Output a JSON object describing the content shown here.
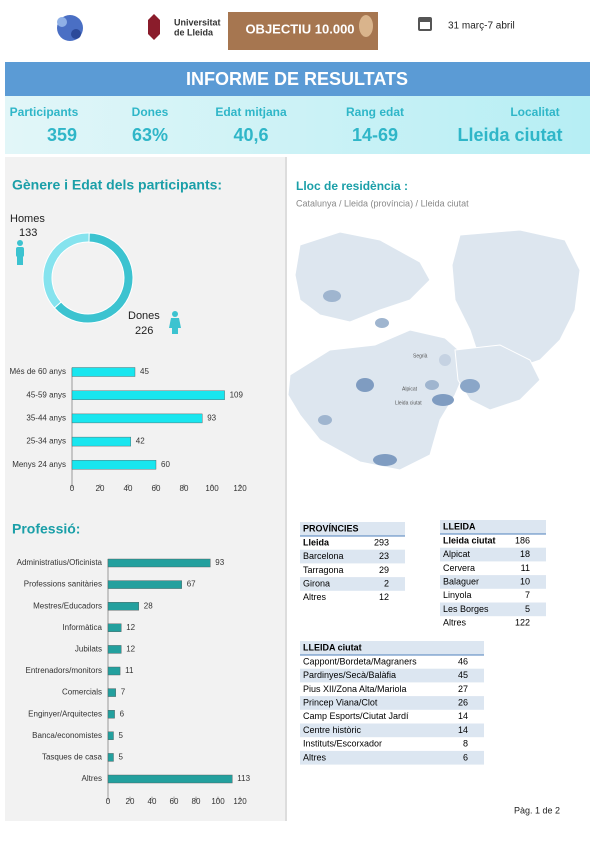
{
  "header": {
    "university": [
      "Universitat",
      "de Lleida"
    ],
    "campaign": "OBJECTIU 10.000",
    "dates": "31 març-7 abril"
  },
  "banner": "INFORME DE RESULTATS",
  "stats": [
    {
      "label": "Participants",
      "value": "359"
    },
    {
      "label": "Dones",
      "value": "63%"
    },
    {
      "label": "Edat mitjana",
      "value": "40,6"
    },
    {
      "label": "Rang edat",
      "value": "14-69"
    },
    {
      "label": "Localitat",
      "value": "Lleida ciutat"
    }
  ],
  "gender": {
    "title": "Gènere i Edat dels participants:",
    "categories": [
      "Homes",
      "Dones"
    ],
    "values": [
      133,
      226
    ],
    "colors": [
      "#86e3ee",
      "#3cc3d0"
    ]
  },
  "age_chart": {
    "type": "bar",
    "categories": [
      "Més de 60 anys",
      "45-59 anys",
      "35-44 anys",
      "25-34 anys",
      "Menys 24 anys"
    ],
    "values": [
      45,
      109,
      93,
      42,
      60
    ],
    "color": "#19e6ef",
    "xlim": [
      0,
      120
    ],
    "xticks": [
      0,
      20,
      40,
      60,
      80,
      100,
      120
    ]
  },
  "profession_chart": {
    "type": "bar",
    "title": "Professió:",
    "categories": [
      "Administratius/Oficinista",
      "Professions sanitàries",
      "Mestres/Educadors",
      "Informàtica",
      "Jubilats",
      "Entrenadors/monitors",
      "Comercials",
      "Enginyer/Arquitectes",
      "Banca/economistes",
      "Tasques de casa",
      "Altres"
    ],
    "values": [
      93,
      67,
      28,
      12,
      12,
      11,
      7,
      6,
      5,
      5,
      113
    ],
    "color": "#23a09e",
    "xlim": [
      0,
      120
    ],
    "xticks": [
      0,
      20,
      40,
      60,
      80,
      100,
      120
    ]
  },
  "map": {
    "title": "Lloc de residència :",
    "subtitle": "Catalunya / Lleida (província) / Lleida ciutat",
    "labels": [
      "Segrià",
      "Alpicat",
      "Lleida ciutat"
    ]
  },
  "tables": [
    {
      "title": "PROVÍNCIES",
      "rows": [
        [
          "Lleida",
          293
        ],
        [
          "Barcelona",
          23
        ],
        [
          "Tarragona",
          29
        ],
        [
          "Girona",
          2
        ],
        [
          "Altres",
          12
        ]
      ]
    },
    {
      "title": "LLEIDA",
      "rows": [
        [
          "Lleida ciutat",
          186
        ],
        [
          "Alpicat",
          18
        ],
        [
          "Cervera",
          11
        ],
        [
          "Balaguer",
          10
        ],
        [
          "Linyola",
          7
        ],
        [
          "Les Borges",
          5
        ],
        [
          "Altres",
          122
        ]
      ]
    },
    {
      "title": "LLEIDA ciutat",
      "rows": [
        [
          "Cappont/Bordeta/Magraners",
          46
        ],
        [
          "Pardinyes/Secà/Balàfia",
          45
        ],
        [
          "Pius XII/Zona Alta/Mariola",
          27
        ],
        [
          "Princep Viana/Clot",
          26
        ],
        [
          "Camp Esports/Ciutat Jardí",
          14
        ],
        [
          "Centre històric",
          14
        ],
        [
          "Instituts/Escorxador",
          8
        ],
        [
          "Altres",
          6
        ]
      ]
    }
  ],
  "footer": "Pàg. 1 de 2"
}
